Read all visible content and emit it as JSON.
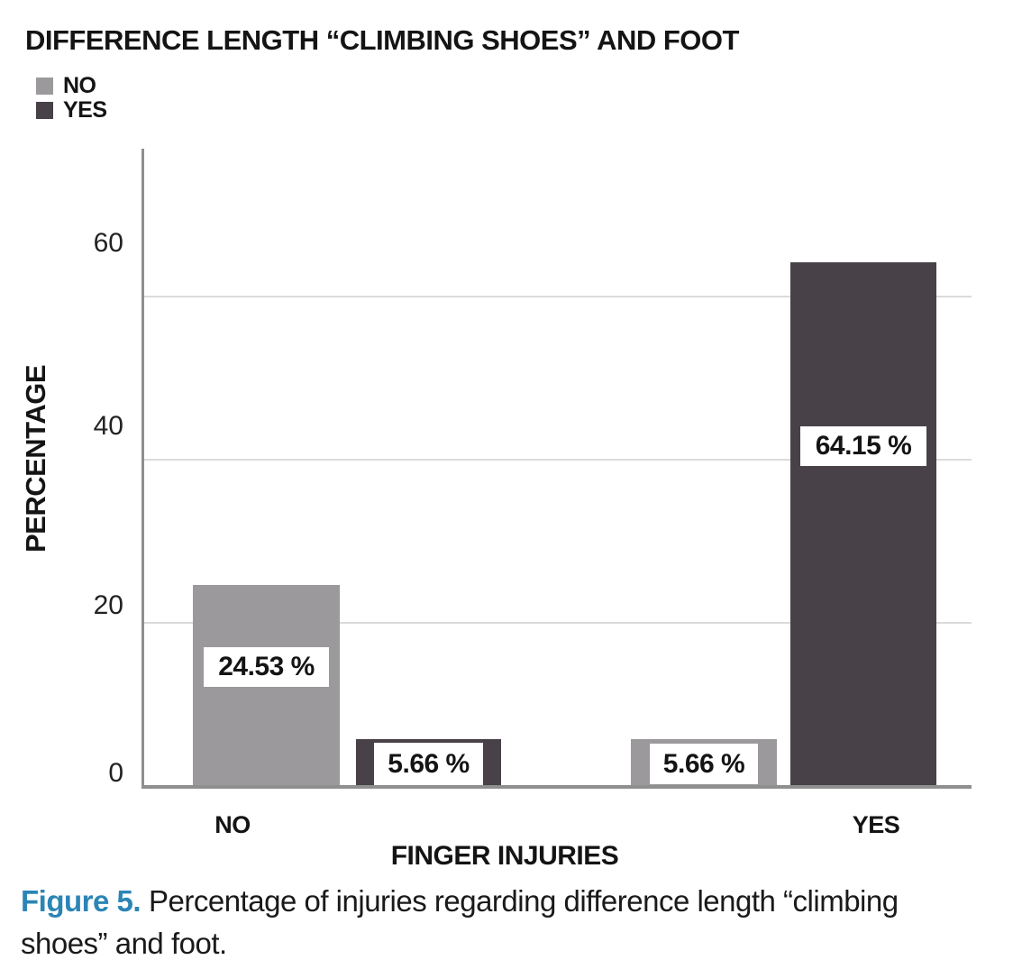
{
  "figure": {
    "caption": {
      "label": "Figure 5.",
      "line1": "Percentage of injuries regarding difference length “climbing",
      "line2": "shoes” and foot."
    }
  },
  "chart_data": {
    "type": "bar",
    "title": "DIFFERENCE LENGTH “CLIMBING SHOES” AND FOOT",
    "categories": [
      "NO",
      "YES"
    ],
    "series": [
      {
        "name": "NO",
        "color": "#9c999c",
        "values": [
          24.53,
          5.66
        ]
      },
      {
        "name": "YES",
        "color": "#484148",
        "values": [
          5.66,
          64.15
        ]
      }
    ],
    "bar_labels": [
      [
        "24.53 %",
        "5.66 %"
      ],
      [
        "5.66 %",
        "64.15 %"
      ]
    ],
    "xlabel": "FINGER INJURIES",
    "ylabel": "PERCENTAGE",
    "ylim": [
      0,
      78
    ],
    "yticks": [
      0,
      20,
      40,
      60
    ],
    "grid": true,
    "legend_position": "top-left",
    "gridline_color": "#dbdbdb",
    "axis_color": "#8f8f8f",
    "caption_accent_color": "#2b85b5"
  }
}
